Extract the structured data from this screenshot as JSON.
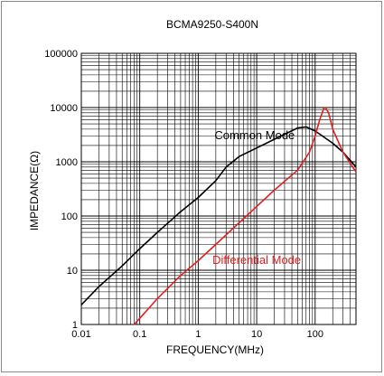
{
  "chart_data": {
    "type": "line",
    "title": "BCMA9250-S400N",
    "xlabel": "FREQUENCY(MHz)",
    "ylabel": "IMPEDANCE(Ω)",
    "xscale": "log",
    "yscale": "log",
    "xlim": [
      0.01,
      500
    ],
    "ylim": [
      1,
      100000
    ],
    "xticks": [
      {
        "value": 0.01,
        "label": "0.01"
      },
      {
        "value": 0.1,
        "label": "0.1"
      },
      {
        "value": 1,
        "label": "1"
      },
      {
        "value": 10,
        "label": "10"
      },
      {
        "value": 100,
        "label": "100"
      }
    ],
    "yticks": [
      {
        "value": 1,
        "label": "1"
      },
      {
        "value": 10,
        "label": "10"
      },
      {
        "value": 100,
        "label": "100"
      },
      {
        "value": 1000,
        "label": "1000"
      },
      {
        "value": 10000,
        "label": "10000"
      },
      {
        "value": 100000,
        "label": "100000"
      }
    ],
    "grid": true,
    "series": [
      {
        "name": "Common Mode",
        "color": "#000000",
        "points": [
          [
            0.01,
            2.3
          ],
          [
            0.02,
            5
          ],
          [
            0.05,
            12
          ],
          [
            0.1,
            25
          ],
          [
            0.2,
            50
          ],
          [
            0.5,
            120
          ],
          [
            1,
            220
          ],
          [
            2,
            450
          ],
          [
            3,
            800
          ],
          [
            5,
            1250
          ],
          [
            10,
            1800
          ],
          [
            20,
            2600
          ],
          [
            50,
            4200
          ],
          [
            70,
            4400
          ],
          [
            100,
            3700
          ],
          [
            200,
            2200
          ],
          [
            300,
            1500
          ],
          [
            500,
            800
          ]
        ]
      },
      {
        "name": "Differential Mode",
        "color": "#e02020",
        "points": [
          [
            0.08,
            1
          ],
          [
            0.1,
            1.3
          ],
          [
            0.2,
            3
          ],
          [
            0.5,
            8
          ],
          [
            1,
            15
          ],
          [
            2,
            30
          ],
          [
            5,
            75
          ],
          [
            10,
            150
          ],
          [
            20,
            300
          ],
          [
            50,
            700
          ],
          [
            80,
            1500
          ],
          [
            100,
            3000
          ],
          [
            120,
            6000
          ],
          [
            140,
            9500
          ],
          [
            150,
            10000
          ],
          [
            170,
            8000
          ],
          [
            200,
            4000
          ],
          [
            300,
            1500
          ],
          [
            500,
            650
          ]
        ]
      }
    ],
    "annotations": [
      {
        "text": "Common Mode",
        "series": 0
      },
      {
        "text": "Differential Mode",
        "series": 1
      }
    ]
  }
}
